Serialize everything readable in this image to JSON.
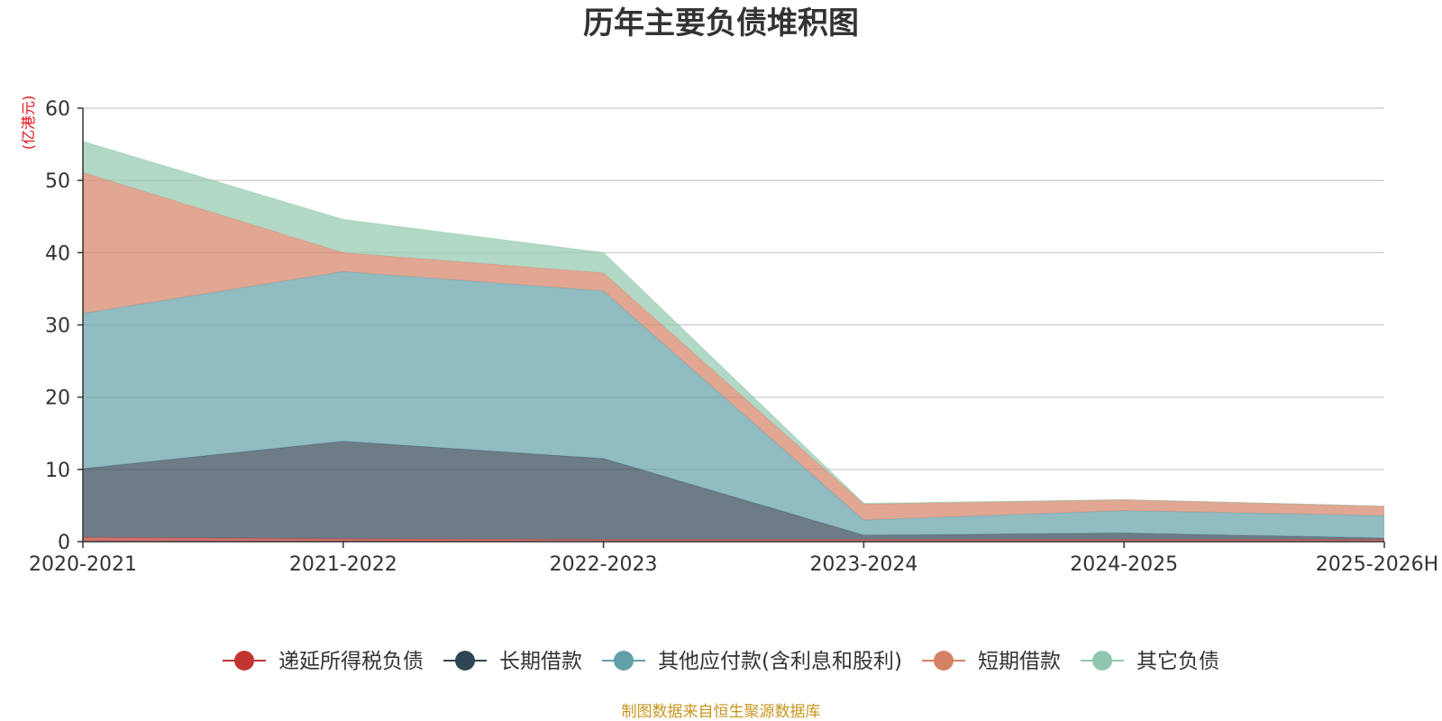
{
  "chart_data": {
    "type": "area",
    "stacked": true,
    "title": "历年主要负债堆积图",
    "y_unit_label": "(亿港元)",
    "categories": [
      "2020-2021",
      "2021-2022",
      "2022-2023",
      "2023-2024",
      "2024-2025",
      "2025-2026H"
    ],
    "ylim": [
      0,
      60
    ],
    "yticks": [
      0,
      10,
      20,
      30,
      40,
      50,
      60
    ],
    "grid": true,
    "legend_position": "bottom",
    "series": [
      {
        "name": "递延所得税负债",
        "color": "#c23531",
        "values": [
          0.6,
          0.4,
          0.3,
          0.3,
          0.3,
          0.3
        ]
      },
      {
        "name": "长期借款",
        "color": "#2f4554",
        "values": [
          9.5,
          13.5,
          11.2,
          0.6,
          0.9,
          0.2
        ]
      },
      {
        "name": "其他应付款(含利息和股利)",
        "color": "#61a0a8",
        "values": [
          21.5,
          23.5,
          23.2,
          2.1,
          3.1,
          3.1
        ]
      },
      {
        "name": "短期借款",
        "color": "#d48265",
        "values": [
          19.5,
          2.6,
          2.5,
          2.2,
          1.5,
          1.3
        ]
      },
      {
        "name": "其它负债",
        "color": "#91c7ae",
        "values": [
          4.3,
          4.6,
          2.8,
          0.1,
          0.0,
          0.0
        ]
      }
    ],
    "source": "制图数据来自恒生聚源数据库"
  }
}
